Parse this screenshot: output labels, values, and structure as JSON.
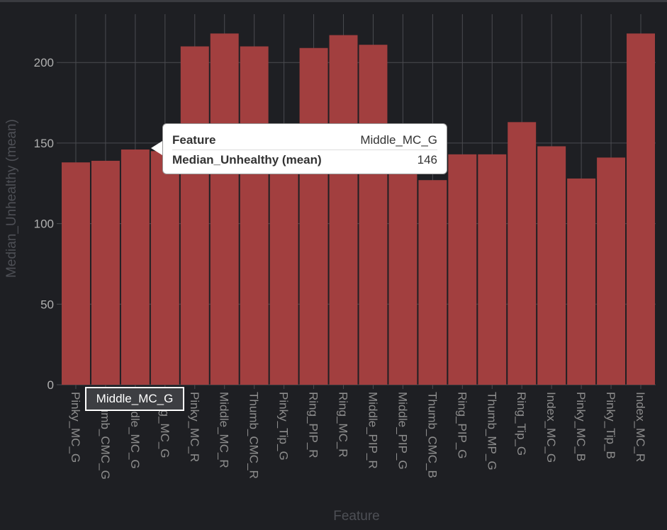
{
  "chart_data": {
    "type": "bar",
    "categories": [
      "Pinky_MC_G",
      "Thumb_CMC_G",
      "Middle_MC_G",
      "Ring_MC_G",
      "Pinky_MC_R",
      "Middle_MC_R",
      "Thumb_CMC_R",
      "Pinky_Tip_G",
      "Ring_PIP_R",
      "Ring_MC_R",
      "Middle_PIP_R",
      "Middle_PIP_G",
      "Thumb_CMC_B",
      "Ring_PIP_G",
      "Thumb_MP_G",
      "Ring_Tip_G",
      "Index_MC_G",
      "Pinky_MC_B",
      "Pinky_Tip_B",
      "Index_MC_R"
    ],
    "values": [
      138,
      139,
      146,
      145,
      210,
      218,
      210,
      147,
      209,
      217,
      211,
      140,
      127,
      143,
      143,
      163,
      148,
      128,
      141,
      218
    ],
    "xlabel": "Feature",
    "ylabel": "Median_Unhealthy (mean)",
    "yticks": [
      0,
      50,
      100,
      150,
      200
    ],
    "ylim": [
      0,
      230
    ],
    "grid": true,
    "bar_color": "#a23f3f"
  },
  "tooltip": {
    "feature_key": "Feature",
    "feature_value": "Middle_MC_G",
    "metric_key": "Median_Unhealthy (mean)",
    "metric_value": "146"
  },
  "hover_label": "Middle_MC_G",
  "colors": {
    "background": "#1e1f23",
    "grid": "#4a4b50",
    "bar": "#a23f3f"
  }
}
